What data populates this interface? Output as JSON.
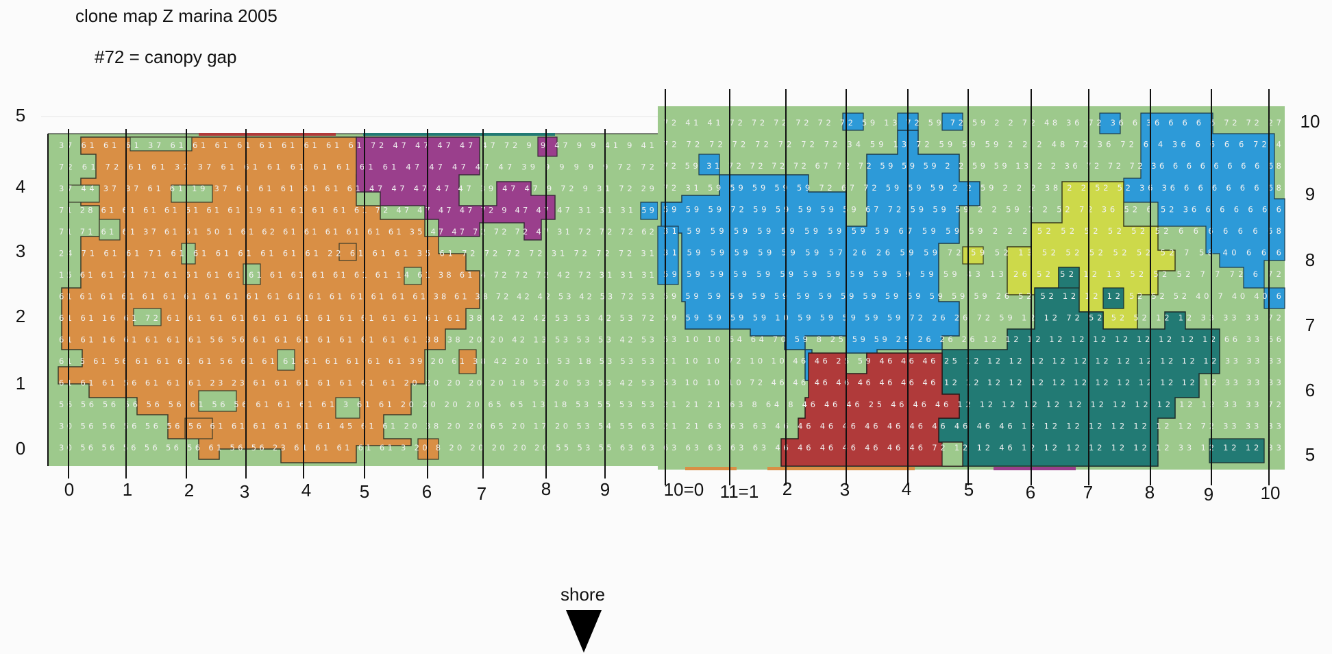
{
  "title": "clone map Z marina 2005",
  "note": "#72 = canopy gap",
  "shore": "shore",
  "left_panel": {
    "y_labels": [
      "5",
      "4",
      "3",
      "2",
      "1",
      "0"
    ],
    "x_labels": [
      "0",
      "1",
      "2",
      "3",
      "4",
      "5",
      "6",
      "7",
      "8",
      "9"
    ]
  },
  "right_panel": {
    "y_labels": [
      "10",
      "9",
      "8",
      "7",
      "6",
      "5"
    ],
    "x_labels": [
      "10=0",
      "11=1",
      "2",
      "3",
      "4",
      "5",
      "6",
      "7",
      "8",
      "9",
      "10"
    ]
  },
  "colors": {
    "background_green": "#9dc98c",
    "orange_clone": "#d98f45",
    "purple_clone": "#9a3f8c",
    "blue_clone": "#2d9ad8",
    "yellow_clone": "#cdd94a",
    "teal_clone": "#227a74",
    "red_clone": "#b03a3a",
    "cell_number_text": "#f2f2f2",
    "grid_line": "#111111"
  },
  "clone_ids_visible": [
    "61",
    "47",
    "59",
    "6",
    "52",
    "12",
    "46",
    "72",
    "2",
    "53"
  ],
  "left_number_rows": [
    "37 61 61 61 37 61 61 61 61 61 61 61 61 61 72 47 47 47 47 47 72 9 9 47 9 9 41 9 41",
    "72 61 72 61 61 37 37 61 61 61 61 61 61 61 61 47 47 47 47 47 39 9 9 9 9 9 72 72",
    "37 44 37 37 61 61 19 37 61 61 61 61 61 61 47 47 47 47 47 39 47 47 9 72 9 31 72 29",
    "71 28 61 61 61 61 61 61 61 19 61 61 61 61 61 72 47 47 47 47 72 9 47 47 47 31 31 31 59",
    "71 71 61 61 37 61 61 50 1 61 62 61 61 61 61 61 61 35 47 47 72 72 72 47 31 72 72 72 62",
    "24 71 61 61 71 61 61 61 61 61 61 61 22 61 61 61 35 61 72 72 72 72 31 72 72 72 31",
    "15 61 61 71 71 61 61 61 61 61 61 61 61 61 61 61 14 61 38 61 4 72 72 72 42 72 31 31 31",
    "61 61 61 61 61 61 61 61 61 61 61 61 61 61 61 61 61 61 38 61 38 72 42 42 53 42 53 72 53",
    "61 61 16 61 72 61 61 61 61 61 61 61 61 61 61 61 61 61 61 38 42 42 42 53 53 42 53 72",
    "61 61 16 61 61 61 61 56 56 61 61 61 61 61 61 61 61 38 38 20 20 42 13 53 53 53 42 53",
    "61 5 61 56 61 61 61 61 56 61 61 61 61 61 61 61 61 39 20 61 38 42 20 13 53 18 53 53 53",
    "61 61 61 56 61 61 61 23 23 61 61 61 61 61 61 61 20 20 20 20 20 18 53 20 53 53 42 53",
    "56 56 56 56 56 56 61 56 56 61 61 61 61 3 61 61 20 20 20 20 65 65 13 18 53 55 53 53",
    "30 56 56 56 56 56 56 61 61 61 61 61 61 45 61 61 20 38 20 20 65 20 17 20 53 54 55 63",
    "30 56 56 56 56 56 56 61 56 56 23 61 61 61 61 61 3 20 8 20 20 20 20 20 55 53 55 63 63"
  ],
  "right_number_rows": [
    "72 41 41 72 72 72 72 72 72 59 13 72 59 72 59 2 2 72 48 36 72 36 6 36 6 6 6 6 72 72 27",
    "72 72 72 72 72 72 72 72 34 59 13 72 59 59 59 2 2 2 48 72 36 72 6 4 36 6 6 6 6 72 4",
    "72 59 31 72 72 72 72 67 72 72 59 59 59 2 2 59 59 13 2 2 36 72 72 72 36 6 6 6 6 6 6 6 68",
    "72 31 59 59 59 59 59 72 67 72 59 59 59 2 2 59 2 2 2 38 2 2 52 52 36 36 6 6 6 6 6 6 68",
    "59 59 59 72 59 59 59 59 59 67 72 59 59 59 2 2 59 2 2 52 72 36 52 6 52 36 6 6 6 6 6 6",
    "31 59 59 59 59 59 59 59 59 59 67 59 59 59 2 2 2 52 52 52 52 52 52 6 6 6 6 6 6 68",
    "31 59 59 59 59 59 59 57 26 26 59 59 72 59 52 13 52 52 52 52 52 52 7 58 40 6 6 6",
    "59 59 59 59 59 59 59 59 59 59 59 59 59 43 13 26 52 52 12 13 52 52 52 7 7 72 6 72",
    "59 59 59 59 59 59 59 59 59 59 59 59 59 59 59 26 52 52 12 12 12 52 52 52 40 7 40 40 6",
    "59 59 59 59 59 10 59 59 59 59 59 72 26 26 72 59 12 12 72 52 52 52 12 12 33 33 33 72",
    "53 10 10 64 64 70 59 8 25 59 59 25 26 26 26 12 12 12 12 12 12 12 12 12 12 12 66 33 66",
    "21 10 10 72 10 10 46 46 25 59 46 46 46 25 12 12 12 12 12 12 12 12 12 12 12 12 33 33 33",
    "53 10 10 10 72 46 46 46 46 46 46 46 46 12 12 12 12 12 12 12 12 12 12 12 12 12 33 33 33",
    "21 21 21 63 8 64 8 46 46 46 25 46 46 46 12 12 12 12 12 12 12 12 12 12 12 12 33 33 72",
    "21 21 63 63 63 46 46 46 46 46 46 46 46 46 46 46 12 12 12 12 12 12 12 12 72 33 33 33",
    "63 63 63 63 63 46 46 46 46 46 46 46 72 12 12 46 12 12 12 12 12 12 12 33 12 12 12 33"
  ]
}
